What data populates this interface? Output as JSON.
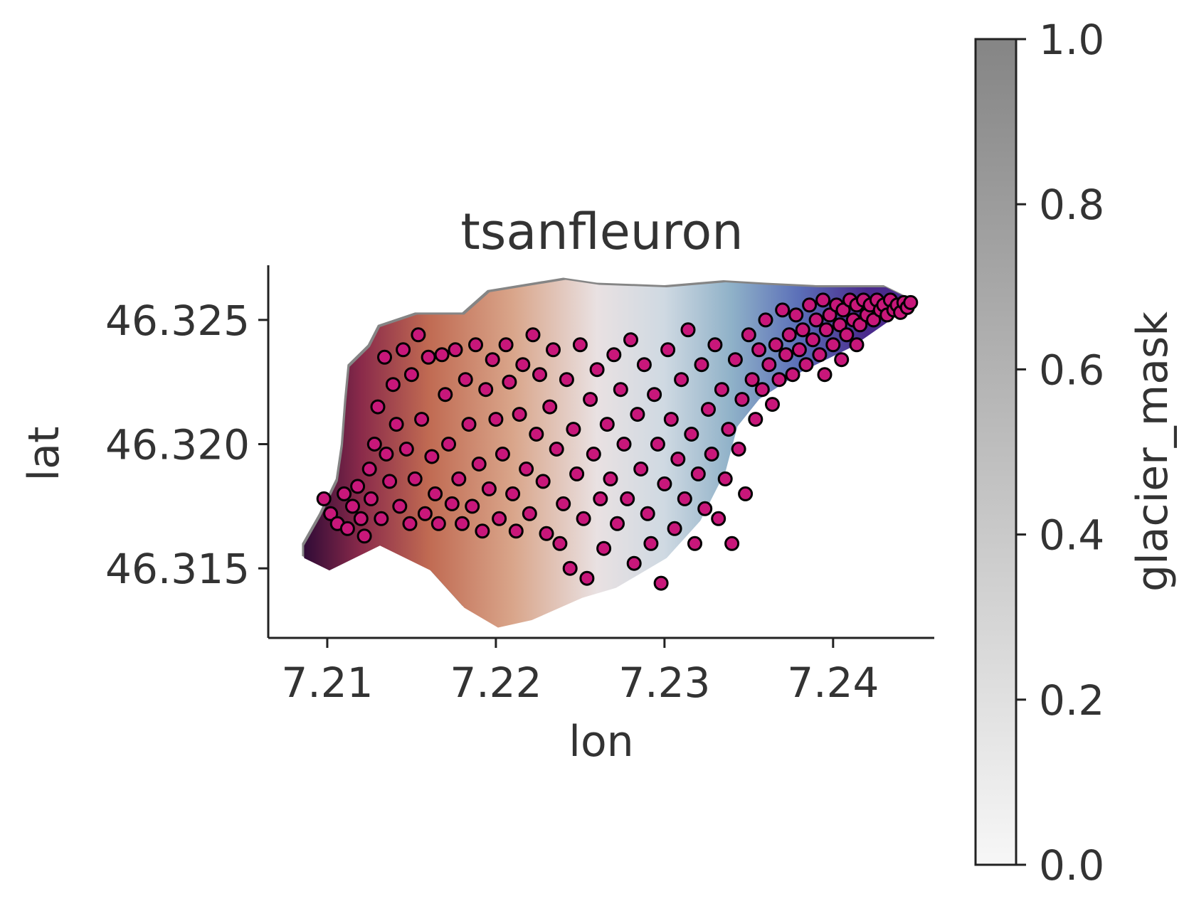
{
  "chart_data": [
    {
      "type": "scatter",
      "title": "tsanfleuron",
      "xlabel": "lon",
      "ylabel": "lat",
      "xlim": [
        7.2065,
        7.246
      ],
      "ylim": [
        46.3122,
        46.3272
      ],
      "xticks": [
        7.21,
        7.22,
        7.23,
        7.24
      ],
      "xtick_labels": [
        "7.21",
        "7.22",
        "7.23",
        "7.24"
      ],
      "yticks": [
        46.315,
        46.32,
        46.325
      ],
      "ytick_labels": [
        "46.315",
        "46.320",
        "46.325"
      ],
      "grid": false,
      "legend": "none",
      "background_layer": {
        "description_type": "gridded glacier field colored by elevation, underlaid by glacier_mask (gray)",
        "outline": [
          [
            7.2085,
            46.316
          ],
          [
            7.2095,
            46.3172
          ],
          [
            7.2105,
            46.3186
          ],
          [
            7.2108,
            46.32
          ],
          [
            7.211,
            46.3218
          ],
          [
            7.2112,
            46.3232
          ],
          [
            7.2124,
            46.324
          ],
          [
            7.213,
            46.3248
          ],
          [
            7.2152,
            46.3253
          ],
          [
            7.218,
            46.3253
          ],
          [
            7.2195,
            46.3262
          ],
          [
            7.224,
            46.3267
          ],
          [
            7.226,
            46.3265
          ],
          [
            7.23,
            46.3264
          ],
          [
            7.2335,
            46.3266
          ],
          [
            7.236,
            46.3265
          ],
          [
            7.239,
            46.3264
          ],
          [
            7.243,
            46.3264
          ],
          [
            7.2448,
            46.3258
          ],
          [
            7.241,
            46.324
          ],
          [
            7.238,
            46.323
          ],
          [
            7.2355,
            46.3219
          ],
          [
            7.2342,
            46.3208
          ],
          [
            7.2335,
            46.319
          ],
          [
            7.232,
            46.317
          ],
          [
            7.23,
            46.3155
          ],
          [
            7.227,
            46.3143
          ],
          [
            7.225,
            46.3139
          ],
          [
            7.222,
            46.313
          ],
          [
            7.22,
            46.3127
          ],
          [
            7.218,
            46.3135
          ],
          [
            7.216,
            46.315
          ],
          [
            7.213,
            46.316
          ],
          [
            7.21,
            46.315
          ],
          [
            7.2085,
            46.3155
          ]
        ],
        "color_stops": [
          {
            "x": 7.2085,
            "color": "#2d0a36"
          },
          {
            "x": 7.212,
            "color": "#8a2a4a"
          },
          {
            "x": 7.216,
            "color": "#c06a52"
          },
          {
            "x": 7.221,
            "color": "#d9a58a"
          },
          {
            "x": 7.226,
            "color": "#e9e1e2"
          },
          {
            "x": 7.23,
            "color": "#cfd9e2"
          },
          {
            "x": 7.234,
            "color": "#8fb1c8"
          },
          {
            "x": 7.238,
            "color": "#5b6fb8"
          },
          {
            "x": 7.242,
            "color": "#4a2a8c"
          }
        ]
      },
      "series": [
        {
          "marker_color": "#c8177a",
          "edge_color": "#000000",
          "points": [
            [
              7.2098,
              46.3178
            ],
            [
              7.2102,
              46.3172
            ],
            [
              7.2106,
              46.3168
            ],
            [
              7.211,
              46.318
            ],
            [
              7.2112,
              46.3166
            ],
            [
              7.2115,
              46.3175
            ],
            [
              7.2118,
              46.3183
            ],
            [
              7.212,
              46.317
            ],
            [
              7.2122,
              46.3163
            ],
            [
              7.2125,
              46.319
            ],
            [
              7.2126,
              46.3178
            ],
            [
              7.2128,
              46.32
            ],
            [
              7.213,
              46.3215
            ],
            [
              7.2132,
              46.317
            ],
            [
              7.2134,
              46.3235
            ],
            [
              7.2135,
              46.3196
            ],
            [
              7.2137,
              46.3185
            ],
            [
              7.2139,
              46.3224
            ],
            [
              7.2141,
              46.3208
            ],
            [
              7.2143,
              46.3175
            ],
            [
              7.2145,
              46.3238
            ],
            [
              7.2147,
              46.3198
            ],
            [
              7.2149,
              46.3168
            ],
            [
              7.215,
              46.3228
            ],
            [
              7.2152,
              46.3186
            ],
            [
              7.2154,
              46.3244
            ],
            [
              7.2156,
              46.321
            ],
            [
              7.2158,
              46.3172
            ],
            [
              7.216,
              46.3235
            ],
            [
              7.2162,
              46.3195
            ],
            [
              7.2164,
              46.318
            ],
            [
              7.2166,
              46.3168
            ],
            [
              7.2168,
              46.3236
            ],
            [
              7.217,
              46.322
            ],
            [
              7.2172,
              46.32
            ],
            [
              7.2174,
              46.3176
            ],
            [
              7.2176,
              46.3238
            ],
            [
              7.2178,
              46.3186
            ],
            [
              7.218,
              46.3168
            ],
            [
              7.2182,
              46.3226
            ],
            [
              7.2184,
              46.3208
            ],
            [
              7.2186,
              46.3175
            ],
            [
              7.2188,
              46.324
            ],
            [
              7.219,
              46.3192
            ],
            [
              7.2192,
              46.3165
            ],
            [
              7.2194,
              46.3222
            ],
            [
              7.2196,
              46.3182
            ],
            [
              7.2198,
              46.3234
            ],
            [
              7.22,
              46.321
            ],
            [
              7.2202,
              46.317
            ],
            [
              7.2204,
              46.3196
            ],
            [
              7.2206,
              46.324
            ],
            [
              7.2208,
              46.3225
            ],
            [
              7.221,
              46.318
            ],
            [
              7.2212,
              46.3165
            ],
            [
              7.2214,
              46.3212
            ],
            [
              7.2216,
              46.3232
            ],
            [
              7.2218,
              46.319
            ],
            [
              7.222,
              46.3172
            ],
            [
              7.2222,
              46.3244
            ],
            [
              7.2224,
              46.3204
            ],
            [
              7.2226,
              46.3228
            ],
            [
              7.2228,
              46.3185
            ],
            [
              7.223,
              46.3164
            ],
            [
              7.2232,
              46.3215
            ],
            [
              7.2234,
              46.3238
            ],
            [
              7.2236,
              46.3198
            ],
            [
              7.2238,
              46.316
            ],
            [
              7.224,
              46.3176
            ],
            [
              7.2242,
              46.3226
            ],
            [
              7.2244,
              46.315
            ],
            [
              7.2246,
              46.3206
            ],
            [
              7.2248,
              46.3188
            ],
            [
              7.225,
              46.324
            ],
            [
              7.2252,
              46.317
            ],
            [
              7.2254,
              46.3146
            ],
            [
              7.2256,
              46.3218
            ],
            [
              7.2258,
              46.3196
            ],
            [
              7.226,
              46.323
            ],
            [
              7.2262,
              46.3178
            ],
            [
              7.2264,
              46.3158
            ],
            [
              7.2266,
              46.3208
            ],
            [
              7.2268,
              46.3186
            ],
            [
              7.227,
              46.3236
            ],
            [
              7.2272,
              46.3168
            ],
            [
              7.2274,
              46.3222
            ],
            [
              7.2276,
              46.32
            ],
            [
              7.2278,
              46.3178
            ],
            [
              7.228,
              46.3242
            ],
            [
              7.2282,
              46.3152
            ],
            [
              7.2284,
              46.3212
            ],
            [
              7.2286,
              46.319
            ],
            [
              7.2288,
              46.3232
            ],
            [
              7.229,
              46.3172
            ],
            [
              7.2292,
              46.316
            ],
            [
              7.2294,
              46.322
            ],
            [
              7.2296,
              46.32
            ],
            [
              7.2298,
              46.3144
            ],
            [
              7.23,
              46.3184
            ],
            [
              7.2302,
              46.3238
            ],
            [
              7.2304,
              46.321
            ],
            [
              7.2306,
              46.3166
            ],
            [
              7.2308,
              46.3194
            ],
            [
              7.231,
              46.3226
            ],
            [
              7.2312,
              46.3178
            ],
            [
              7.2314,
              46.3246
            ],
            [
              7.2316,
              46.3204
            ],
            [
              7.2318,
              46.316
            ],
            [
              7.232,
              46.3188
            ],
            [
              7.2322,
              46.3232
            ],
            [
              7.2324,
              46.3174
            ],
            [
              7.2326,
              46.3214
            ],
            [
              7.2328,
              46.3196
            ],
            [
              7.233,
              46.324
            ],
            [
              7.2332,
              46.317
            ],
            [
              7.2334,
              46.3222
            ],
            [
              7.2336,
              46.3186
            ],
            [
              7.2338,
              46.3206
            ],
            [
              7.234,
              46.316
            ],
            [
              7.2342,
              46.3234
            ],
            [
              7.2344,
              46.3198
            ],
            [
              7.2346,
              46.3218
            ],
            [
              7.2348,
              46.318
            ],
            [
              7.235,
              46.3244
            ],
            [
              7.2352,
              46.3226
            ],
            [
              7.2354,
              46.321
            ],
            [
              7.2356,
              46.3238
            ],
            [
              7.2358,
              46.3222
            ],
            [
              7.236,
              46.325
            ],
            [
              7.2362,
              46.3232
            ],
            [
              7.2364,
              46.3216
            ],
            [
              7.2366,
              46.324
            ],
            [
              7.2368,
              46.3226
            ],
            [
              7.237,
              46.3254
            ],
            [
              7.2372,
              46.3236
            ],
            [
              7.2374,
              46.3244
            ],
            [
              7.2376,
              46.3228
            ],
            [
              7.2378,
              46.3252
            ],
            [
              7.238,
              46.3238
            ],
            [
              7.2382,
              46.3246
            ],
            [
              7.2384,
              46.3232
            ],
            [
              7.2386,
              46.3256
            ],
            [
              7.2388,
              46.3242
            ],
            [
              7.239,
              46.325
            ],
            [
              7.2392,
              46.3236
            ],
            [
              7.2394,
              46.3258
            ],
            [
              7.2396,
              46.3246
            ],
            [
              7.2398,
              46.3252
            ],
            [
              7.24,
              46.324
            ],
            [
              7.2402,
              46.3256
            ],
            [
              7.2404,
              46.3248
            ],
            [
              7.2406,
              46.3254
            ],
            [
              7.2408,
              46.3244
            ],
            [
              7.241,
              46.3258
            ],
            [
              7.2412,
              46.325
            ],
            [
              7.2414,
              46.3256
            ],
            [
              7.2416,
              46.3248
            ],
            [
              7.2418,
              46.3258
            ],
            [
              7.242,
              46.3252
            ],
            [
              7.2422,
              46.3256
            ],
            [
              7.2424,
              46.325
            ],
            [
              7.2426,
              46.3258
            ],
            [
              7.2428,
              46.3254
            ],
            [
              7.243,
              46.3256
            ],
            [
              7.2432,
              46.3252
            ],
            [
              7.2434,
              46.3258
            ],
            [
              7.2436,
              46.3254
            ],
            [
              7.2438,
              46.3256
            ],
            [
              7.244,
              46.3253
            ],
            [
              7.2442,
              46.3257
            ],
            [
              7.2444,
              46.3255
            ],
            [
              7.2446,
              46.3257
            ],
            [
              7.2414,
              46.324
            ],
            [
              7.2405,
              46.3234
            ],
            [
              7.2395,
              46.3228
            ]
          ]
        }
      ],
      "colorbar": {
        "label": "glacier_mask",
        "range": [
          0.0,
          1.0
        ],
        "ticks": [
          0.0,
          0.2,
          0.4,
          0.6,
          0.8,
          1.0
        ],
        "tick_labels": [
          "0.0",
          "0.2",
          "0.4",
          "0.6",
          "0.8",
          "1.0"
        ],
        "color_low": "#f7f7f7",
        "color_high": "#858585"
      }
    }
  ]
}
